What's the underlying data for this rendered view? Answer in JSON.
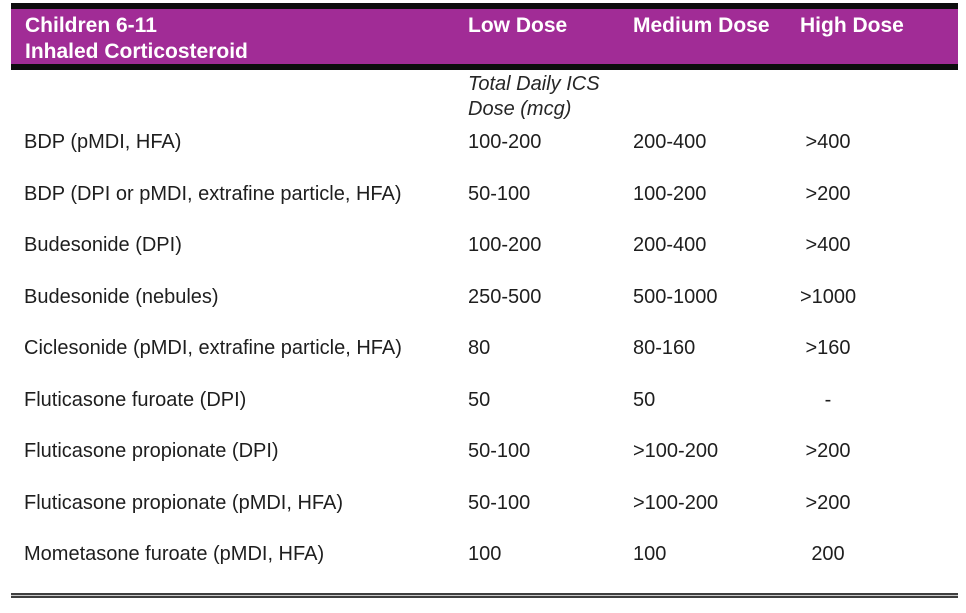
{
  "table": {
    "header": {
      "title_line1": "Children 6-11",
      "title_line2": "Inhaled Corticosteroid",
      "col_low": "Low Dose",
      "col_medium": "Medium Dose",
      "col_high": "High Dose"
    },
    "subheader": {
      "line1": "Total Daily ICS",
      "line2": "Dose (mcg)"
    },
    "rows": [
      {
        "name": "BDP (pMDI, HFA)",
        "low": "100-200",
        "medium": "200-400",
        "high": ">400"
      },
      {
        "name": "BDP (DPI or pMDI, extrafine particle, HFA)",
        "low": "50-100",
        "medium": "100-200",
        "high": ">200"
      },
      {
        "name": "Budesonide (DPI)",
        "low": "100-200",
        "medium": "200-400",
        "high": ">400"
      },
      {
        "name": "Budesonide (nebules)",
        "low": "250-500",
        "medium": "500-1000",
        "high": ">1000"
      },
      {
        "name": "Ciclesonide (pMDI, extrafine particle, HFA)",
        "low": "80",
        "medium": "80-160",
        "high": ">160"
      },
      {
        "name": "Fluticasone furoate (DPI)",
        "low": "50",
        "medium": "50",
        "high": "-"
      },
      {
        "name": "Fluticasone propionate (DPI)",
        "low": "50-100",
        "medium": ">100-200",
        "high": ">200"
      },
      {
        "name": "Fluticasone propionate (pMDI, HFA)",
        "low": "50-100",
        "medium": ">100-200",
        "high": ">200"
      },
      {
        "name": "Mometasone furoate (pMDI, HFA)",
        "low": "100",
        "medium": "100",
        "high": "200"
      }
    ],
    "colors": {
      "header_bg": "#A12C96",
      "header_text": "#FFFFFF",
      "header_rule": "#0D0D0D",
      "body_text": "#1E1E1E",
      "bottom_rule_dark": "#3F3F3F",
      "bottom_rule_light": "#C9C9C9"
    }
  },
  "chart_data": {
    "type": "table",
    "title": "Children 6-11 Inhaled Corticosteroid",
    "units_note": "Total Daily ICS Dose (mcg)",
    "columns": [
      "Inhaled Corticosteroid",
      "Low Dose",
      "Medium Dose",
      "High Dose"
    ],
    "rows": [
      [
        "BDP (pMDI, HFA)",
        "100-200",
        "200-400",
        ">400"
      ],
      [
        "BDP (DPI or pMDI, extrafine particle, HFA)",
        "50-100",
        "100-200",
        ">200"
      ],
      [
        "Budesonide (DPI)",
        "100-200",
        "200-400",
        ">400"
      ],
      [
        "Budesonide (nebules)",
        "250-500",
        "500-1000",
        ">1000"
      ],
      [
        "Ciclesonide (pMDI, extrafine particle, HFA)",
        "80",
        "80-160",
        ">160"
      ],
      [
        "Fluticasone furoate (DPI)",
        "50",
        "50",
        "-"
      ],
      [
        "Fluticasone propionate (DPI)",
        "50-100",
        ">100-200",
        ">200"
      ],
      [
        "Fluticasone propionate (pMDI, HFA)",
        "50-100",
        ">100-200",
        ">200"
      ],
      [
        "Mometasone furoate (pMDI, HFA)",
        "100",
        "100",
        "200"
      ]
    ]
  }
}
